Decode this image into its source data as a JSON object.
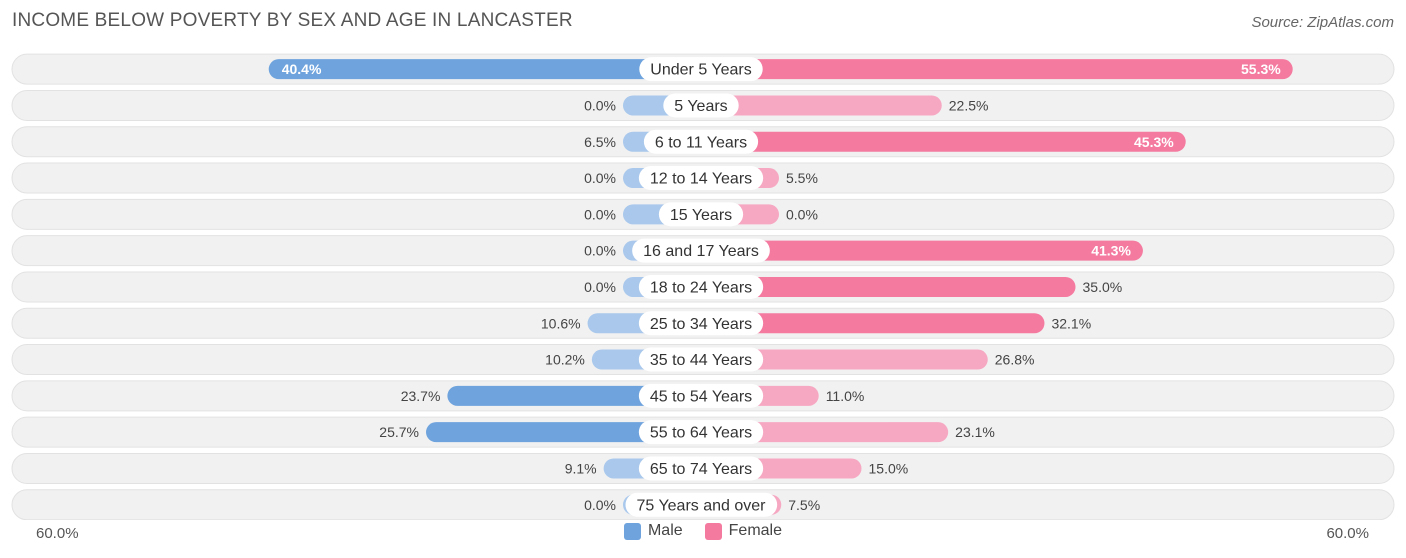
{
  "chart_data": {
    "type": "bar",
    "orientation": "horizontal-diverging",
    "title": "INCOME BELOW POVERTY BY SEX AND AGE IN LANCASTER",
    "source": "Source: ZipAtlas.com",
    "categories": [
      "Under 5 Years",
      "5 Years",
      "6 to 11 Years",
      "12 to 14 Years",
      "15 Years",
      "16 and 17 Years",
      "18 to 24 Years",
      "25 to 34 Years",
      "35 to 44 Years",
      "45 to 54 Years",
      "55 to 64 Years",
      "65 to 74 Years",
      "75 Years and over"
    ],
    "series": [
      {
        "name": "Male",
        "values": [
          40.4,
          0.0,
          6.5,
          0.0,
          0.0,
          0.0,
          0.0,
          10.6,
          10.2,
          23.7,
          25.7,
          9.1,
          0.0
        ],
        "labels": [
          "40.4%",
          "0.0%",
          "6.5%",
          "0.0%",
          "0.0%",
          "0.0%",
          "0.0%",
          "10.6%",
          "10.2%",
          "23.7%",
          "25.7%",
          "9.1%",
          "0.0%"
        ]
      },
      {
        "name": "Female",
        "values": [
          55.3,
          22.5,
          45.3,
          5.5,
          0.0,
          41.3,
          35.0,
          32.1,
          26.8,
          11.0,
          23.1,
          15.0,
          7.5
        ],
        "labels": [
          "55.3%",
          "22.5%",
          "45.3%",
          "5.5%",
          "0.0%",
          "41.3%",
          "35.0%",
          "32.1%",
          "26.8%",
          "11.0%",
          "23.1%",
          "15.0%",
          "7.5%"
        ]
      }
    ],
    "xlim": [
      0,
      60
    ],
    "axis_left_label": "60.0%",
    "axis_right_label": "60.0%",
    "legend_position": "bottom-center",
    "colors": {
      "male_strong": "#6ea3dd",
      "male_light": "#a9c8ec",
      "female_strong": "#f47aa0",
      "female_light": "#f6a8c2",
      "row_bg": "#f1f1f1",
      "row_border": "#e2e2e2"
    }
  },
  "legend": {
    "male_label": "Male",
    "female_label": "Female"
  }
}
